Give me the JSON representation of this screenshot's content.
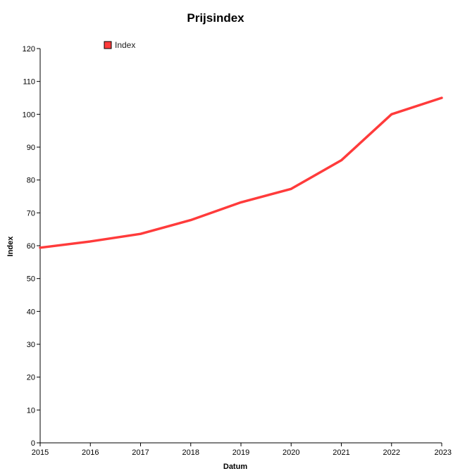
{
  "chart_data": {
    "type": "line",
    "title": "Prijsindex",
    "xlabel": "Datum",
    "ylabel": "Index",
    "x": [
      "2015",
      "2016",
      "2017",
      "2018",
      "2019",
      "2020",
      "2021",
      "2022",
      "2023"
    ],
    "series": [
      {
        "name": "Index",
        "color": "#ff3b3b",
        "values": [
          59.4,
          61.3,
          63.6,
          67.8,
          73.2,
          77.3,
          86.0,
          100.0,
          105.0
        ]
      }
    ],
    "ylim": [
      0,
      120
    ],
    "yticks": [
      0,
      10,
      20,
      30,
      40,
      50,
      60,
      70,
      80,
      90,
      100,
      110,
      120
    ],
    "grid": false,
    "legend": "top-left"
  }
}
